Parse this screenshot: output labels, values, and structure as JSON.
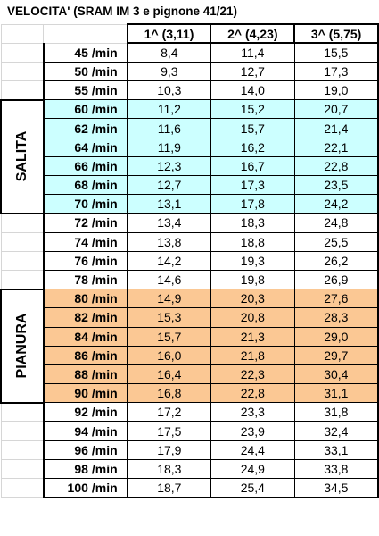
{
  "title": "VELOCITA' (SRAM IM 3 e pignone 41/21)",
  "headers": [
    "1^  (3,11)",
    "2^  (4,23)",
    "3^  (5,75)"
  ],
  "unit": "/min",
  "groups": {
    "salita": "SALITA",
    "pianura": "PIANURA"
  },
  "colors": {
    "salita": "#ccffff",
    "pianura": "#fbc894"
  },
  "rows": [
    {
      "rpm": "45",
      "v": [
        "8,4",
        "11,4",
        "15,5"
      ]
    },
    {
      "rpm": "50",
      "v": [
        "9,3",
        "12,7",
        "17,3"
      ]
    },
    {
      "rpm": "55",
      "v": [
        "10,3",
        "14,0",
        "19,0"
      ]
    },
    {
      "rpm": "60",
      "v": [
        "11,2",
        "15,2",
        "20,7"
      ],
      "group": "salita"
    },
    {
      "rpm": "62",
      "v": [
        "11,6",
        "15,7",
        "21,4"
      ],
      "group": "salita"
    },
    {
      "rpm": "64",
      "v": [
        "11,9",
        "16,2",
        "22,1"
      ],
      "group": "salita"
    },
    {
      "rpm": "66",
      "v": [
        "12,3",
        "16,7",
        "22,8"
      ],
      "group": "salita"
    },
    {
      "rpm": "68",
      "v": [
        "12,7",
        "17,3",
        "23,5"
      ],
      "group": "salita"
    },
    {
      "rpm": "70",
      "v": [
        "13,1",
        "17,8",
        "24,2"
      ],
      "group": "salita"
    },
    {
      "rpm": "72",
      "v": [
        "13,4",
        "18,3",
        "24,8"
      ]
    },
    {
      "rpm": "74",
      "v": [
        "13,8",
        "18,8",
        "25,5"
      ]
    },
    {
      "rpm": "76",
      "v": [
        "14,2",
        "19,3",
        "26,2"
      ]
    },
    {
      "rpm": "78",
      "v": [
        "14,6",
        "19,8",
        "26,9"
      ]
    },
    {
      "rpm": "80",
      "v": [
        "14,9",
        "20,3",
        "27,6"
      ],
      "group": "pianura"
    },
    {
      "rpm": "82",
      "v": [
        "15,3",
        "20,8",
        "28,3"
      ],
      "group": "pianura"
    },
    {
      "rpm": "84",
      "v": [
        "15,7",
        "21,3",
        "29,0"
      ],
      "group": "pianura"
    },
    {
      "rpm": "86",
      "v": [
        "16,0",
        "21,8",
        "29,7"
      ],
      "group": "pianura"
    },
    {
      "rpm": "88",
      "v": [
        "16,4",
        "22,3",
        "30,4"
      ],
      "group": "pianura"
    },
    {
      "rpm": "90",
      "v": [
        "16,8",
        "22,8",
        "31,1"
      ],
      "group": "pianura"
    },
    {
      "rpm": "92",
      "v": [
        "17,2",
        "23,3",
        "31,8"
      ]
    },
    {
      "rpm": "94",
      "v": [
        "17,5",
        "23,9",
        "32,4"
      ]
    },
    {
      "rpm": "96",
      "v": [
        "17,9",
        "24,4",
        "33,1"
      ]
    },
    {
      "rpm": "98",
      "v": [
        "18,3",
        "24,9",
        "33,8"
      ]
    },
    {
      "rpm": "100",
      "v": [
        "18,7",
        "25,4",
        "34,5"
      ]
    }
  ]
}
